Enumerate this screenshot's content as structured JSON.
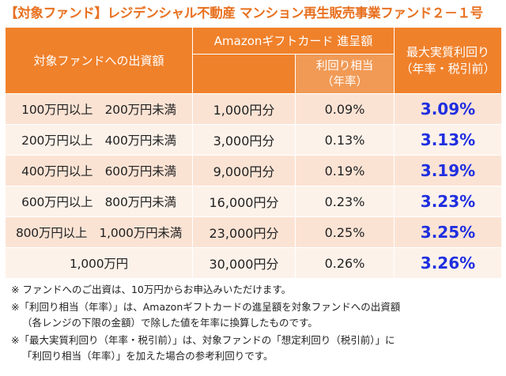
{
  "title": "【対象ファンド】レジデンシャル不動産 マンション再生販売事業ファンド２－１号",
  "header": {
    "investment": "対象ファンドへの出資額",
    "amazon_gift": "Amazonギフトカード 進呈額",
    "yield_equiv": "利回り相当\n（年率）",
    "max_yield": "最大実質利回り\n（年率・税引前）"
  },
  "rows": [
    {
      "range": "100万円以上　200万円未満",
      "gift": "1,000円分",
      "yield": "0.09%",
      "max": "3.09%"
    },
    {
      "range": "200万円以上　400万円未満",
      "gift": "3,000円分",
      "yield": "0.13%",
      "max": "3.13%"
    },
    {
      "range": "400万円以上　600万円未満",
      "gift": "9,000円分",
      "yield": "0.19%",
      "max": "3.19%"
    },
    {
      "range": "600万円以上　800万円未満",
      "gift": "16,000円分",
      "yield": "0.23%",
      "max": "3.23%"
    },
    {
      "range": "800万円以上　1,000万円未満",
      "gift": "23,000円分",
      "yield": "0.25%",
      "max": "3.25%"
    },
    {
      "range": "1,000万円",
      "gift": "30,000円分",
      "yield": "0.26%",
      "max": "3.26%"
    }
  ],
  "notes": [
    {
      "line1": "※ ファンドへのご出資は、10万円からお申込みいただけます。",
      "line2": ""
    },
    {
      "line1": "※「利回り相当（年率）」は、Amazonギフトカードの進呈額を対象ファンドへの出資額",
      "line2": "（各レンジの下限の金額）で除した値を年率に換算したものです。"
    },
    {
      "line1": "※「最大実質利回り（年率・税引前）」は、対象ファンドの「想定利回り（税引前）」に",
      "line2": "「利回り相当（年率）」を加えた場合の参考利回りです。"
    }
  ],
  "colors": {
    "accent": "#e8701f",
    "header_bg": "#f0812b",
    "rate_text": "#1f2fe0",
    "row_odd": "#fbe3d4",
    "row_even": "#fdf2ea"
  }
}
